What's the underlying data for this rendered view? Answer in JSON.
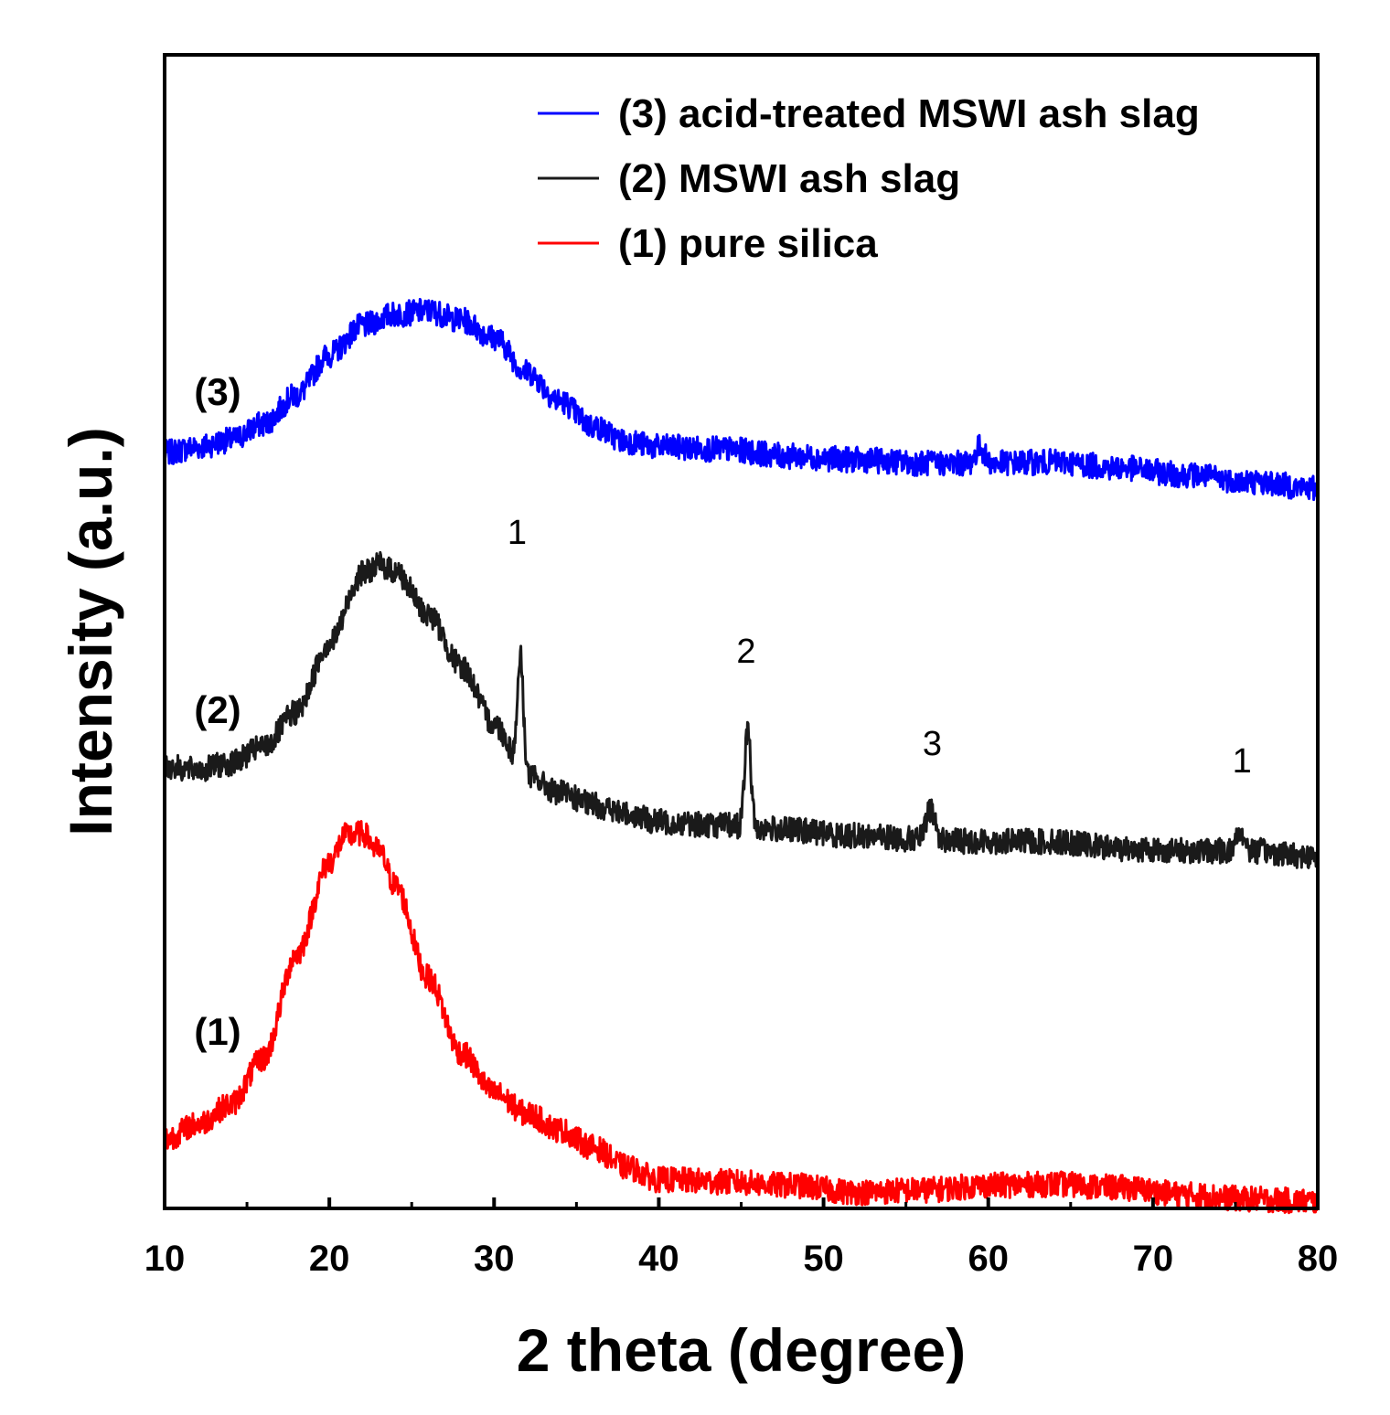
{
  "chart_data": {
    "type": "line",
    "title": "",
    "xlabel": "2 theta (degree)",
    "ylabel": "Intensity (a.u.)",
    "xlim": [
      10,
      80
    ],
    "ylim": [
      0,
      100
    ],
    "xticks": [
      10,
      20,
      30,
      40,
      50,
      60,
      70,
      80
    ],
    "grid": false,
    "legend_position": "top-right",
    "series": [
      {
        "name": "(3) acid-treated MSWI ash slag",
        "label": "(3)",
        "color": "#0000ff",
        "noise": 1.0,
        "points": [
          [
            10,
            65.5
          ],
          [
            12,
            66.0
          ],
          [
            14,
            66.6
          ],
          [
            16,
            68.0
          ],
          [
            18,
            70.5
          ],
          [
            20,
            74.0
          ],
          [
            22,
            76.5
          ],
          [
            24,
            77.5
          ],
          [
            26,
            77.8
          ],
          [
            28,
            77.0
          ],
          [
            30,
            75.5
          ],
          [
            32,
            72.5
          ],
          [
            34,
            70.0
          ],
          [
            36,
            67.8
          ],
          [
            38,
            66.5
          ],
          [
            40,
            66.0
          ],
          [
            44,
            65.8
          ],
          [
            48,
            65.2
          ],
          [
            52,
            64.9
          ],
          [
            56,
            64.6
          ],
          [
            60,
            64.6
          ],
          [
            64,
            64.7
          ],
          [
            68,
            64.2
          ],
          [
            72,
            63.6
          ],
          [
            76,
            63.0
          ],
          [
            80,
            62.4
          ]
        ],
        "peaks": [
          [
            59.5,
            1.4,
            0.25
          ]
        ]
      },
      {
        "name": "(2) MSWI ash slag",
        "label": "(2)",
        "color": "#1a1a1a",
        "noise": 1.0,
        "points": [
          [
            10,
            38.3
          ],
          [
            12,
            38.0
          ],
          [
            14,
            38.6
          ],
          [
            16,
            40.0
          ],
          [
            18,
            43.0
          ],
          [
            20,
            49.0
          ],
          [
            22,
            55.0
          ],
          [
            23,
            55.8
          ],
          [
            24,
            55.2
          ],
          [
            26,
            51.5
          ],
          [
            28,
            47.0
          ],
          [
            30,
            42.0
          ],
          [
            32,
            37.5
          ],
          [
            34,
            36.0
          ],
          [
            36,
            35.0
          ],
          [
            38,
            34.2
          ],
          [
            40,
            33.5
          ],
          [
            44,
            33.2
          ],
          [
            48,
            32.8
          ],
          [
            52,
            32.3
          ],
          [
            56,
            32.0
          ],
          [
            60,
            31.8
          ],
          [
            64,
            31.8
          ],
          [
            68,
            31.2
          ],
          [
            72,
            31.0
          ],
          [
            76,
            31.0
          ],
          [
            80,
            30.5
          ]
        ],
        "peaks": [
          [
            31.6,
            10.0,
            0.18
          ],
          [
            45.4,
            8.5,
            0.18
          ],
          [
            56.5,
            2.6,
            0.25
          ],
          [
            75.3,
            1.7,
            0.25
          ]
        ]
      },
      {
        "name": "(1) pure silica",
        "label": "(1)",
        "color": "#ff0000",
        "noise": 1.0,
        "points": [
          [
            10,
            6.0
          ],
          [
            12,
            7.3
          ],
          [
            14,
            9.0
          ],
          [
            16,
            13.0
          ],
          [
            18,
            22.0
          ],
          [
            20,
            30.0
          ],
          [
            21,
            32.3
          ],
          [
            22,
            32.5
          ],
          [
            23,
            31.0
          ],
          [
            24,
            28.0
          ],
          [
            26,
            20.0
          ],
          [
            28,
            13.5
          ],
          [
            30,
            10.0
          ],
          [
            32,
            8.2
          ],
          [
            34,
            6.8
          ],
          [
            36,
            5.3
          ],
          [
            38,
            3.6
          ],
          [
            40,
            2.5
          ],
          [
            44,
            2.3
          ],
          [
            48,
            2.0
          ],
          [
            52,
            1.4
          ],
          [
            56,
            1.6
          ],
          [
            60,
            2.0
          ],
          [
            64,
            2.1
          ],
          [
            68,
            1.8
          ],
          [
            72,
            1.2
          ],
          [
            76,
            0.8
          ],
          [
            80,
            0.6
          ]
        ],
        "peaks": []
      }
    ],
    "annotations": [
      {
        "text": "1",
        "x": 31.4,
        "y": 57.6
      },
      {
        "text": "2",
        "x": 45.3,
        "y": 47.3
      },
      {
        "text": "3",
        "x": 56.6,
        "y": 39.3
      },
      {
        "text": "1",
        "x": 75.4,
        "y": 37.8
      }
    ]
  }
}
